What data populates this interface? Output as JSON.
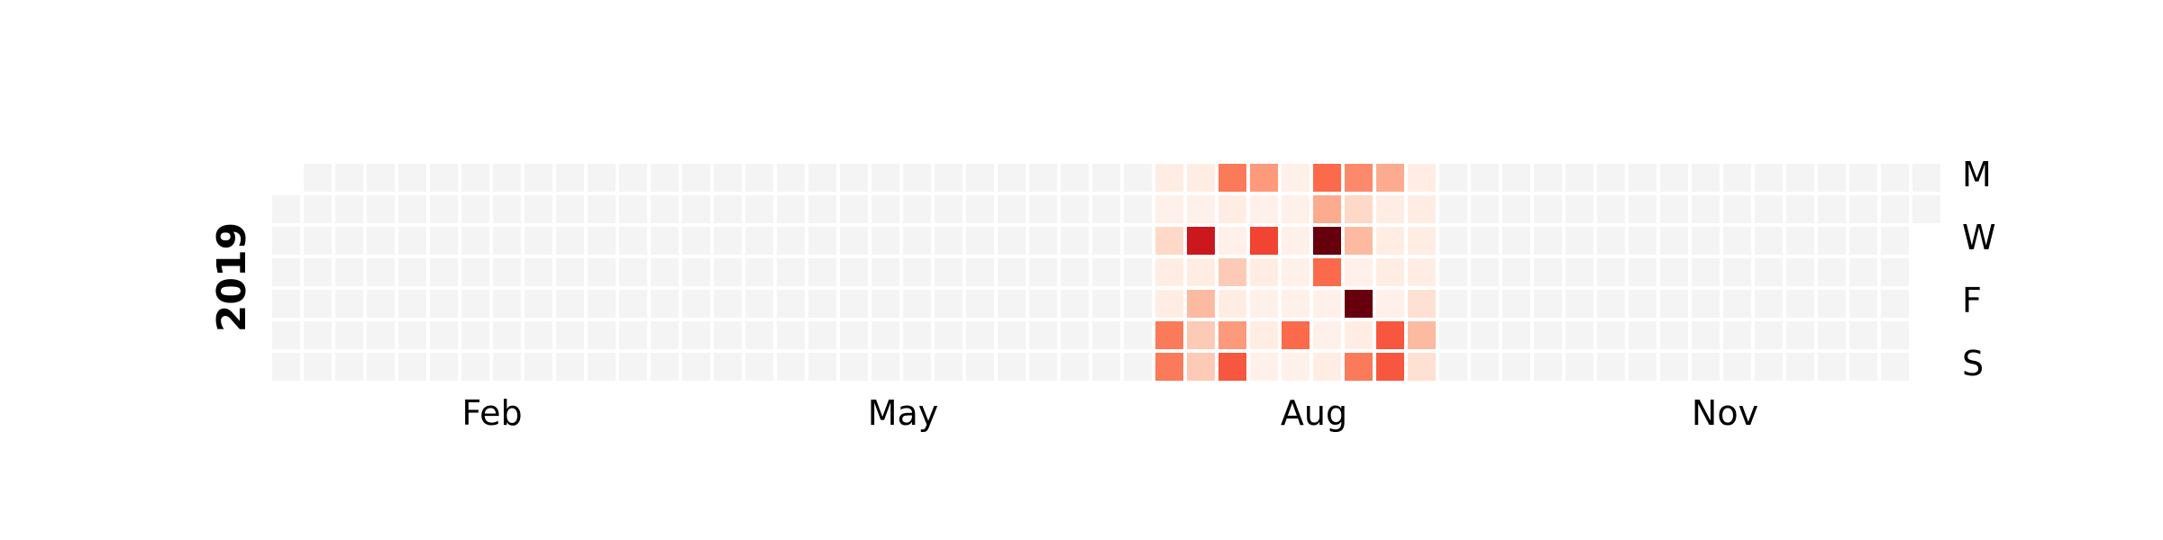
{
  "chart_data": {
    "type": "heatmap",
    "title": "",
    "year": "2019",
    "x_tick_labels": [
      "Feb",
      "May",
      "Aug",
      "Nov"
    ],
    "y_tick_labels": [
      "M",
      "W",
      "F",
      "S"
    ],
    "colormap": "Reds",
    "empty_color": "#f4f4f4",
    "grid": false,
    "week_start": "Monday",
    "notes": "Most days are empty (no data, shown grey); values on the 0-1 intensity scale are listed per day in 'active_days' as [week_index, weekday_index(0=Mon..6=Sun), value].",
    "active_days": [
      [
        28,
        0,
        0.05
      ],
      [
        28,
        1,
        0.03
      ],
      [
        28,
        2,
        0.15
      ],
      [
        28,
        3,
        0.05
      ],
      [
        28,
        4,
        0.05
      ],
      [
        28,
        5,
        0.45
      ],
      [
        28,
        6,
        0.45
      ],
      [
        29,
        0,
        0.05
      ],
      [
        29,
        1,
        0.03
      ],
      [
        29,
        2,
        0.75
      ],
      [
        29,
        3,
        0.05
      ],
      [
        29,
        4,
        0.25
      ],
      [
        29,
        5,
        0.2
      ],
      [
        29,
        6,
        0.2
      ],
      [
        30,
        0,
        0.45
      ],
      [
        30,
        1,
        0.05
      ],
      [
        30,
        2,
        0.03
      ],
      [
        30,
        3,
        0.2
      ],
      [
        30,
        4,
        0.05
      ],
      [
        30,
        5,
        0.35
      ],
      [
        30,
        6,
        0.55
      ],
      [
        31,
        0,
        0.35
      ],
      [
        31,
        1,
        0.03
      ],
      [
        31,
        2,
        0.6
      ],
      [
        31,
        3,
        0.05
      ],
      [
        31,
        4,
        0.03
      ],
      [
        31,
        5,
        0.05
      ],
      [
        31,
        6,
        0.03
      ],
      [
        32,
        0,
        0.03
      ],
      [
        32,
        1,
        0.03
      ],
      [
        32,
        2,
        0.03
      ],
      [
        32,
        3,
        0.03
      ],
      [
        32,
        4,
        0.03
      ],
      [
        32,
        5,
        0.5
      ],
      [
        32,
        6,
        0.03
      ],
      [
        33,
        0,
        0.5
      ],
      [
        33,
        1,
        0.3
      ],
      [
        33,
        2,
        1.0
      ],
      [
        33,
        3,
        0.5
      ],
      [
        33,
        4,
        0.03
      ],
      [
        33,
        5,
        0.03
      ],
      [
        33,
        6,
        0.05
      ],
      [
        34,
        0,
        0.4
      ],
      [
        34,
        1,
        0.15
      ],
      [
        34,
        2,
        0.25
      ],
      [
        34,
        3,
        0.03
      ],
      [
        34,
        4,
        1.0
      ],
      [
        34,
        5,
        0.05
      ],
      [
        34,
        6,
        0.45
      ],
      [
        35,
        0,
        0.3
      ],
      [
        35,
        1,
        0.05
      ],
      [
        35,
        2,
        0.05
      ],
      [
        35,
        3,
        0.05
      ],
      [
        35,
        4,
        0.03
      ],
      [
        35,
        5,
        0.55
      ],
      [
        35,
        6,
        0.55
      ],
      [
        36,
        0,
        0.05
      ],
      [
        36,
        1,
        0.05
      ],
      [
        36,
        2,
        0.05
      ],
      [
        36,
        3,
        0.05
      ],
      [
        36,
        4,
        0.12
      ],
      [
        36,
        5,
        0.25
      ],
      [
        36,
        6,
        0.12
      ]
    ]
  }
}
